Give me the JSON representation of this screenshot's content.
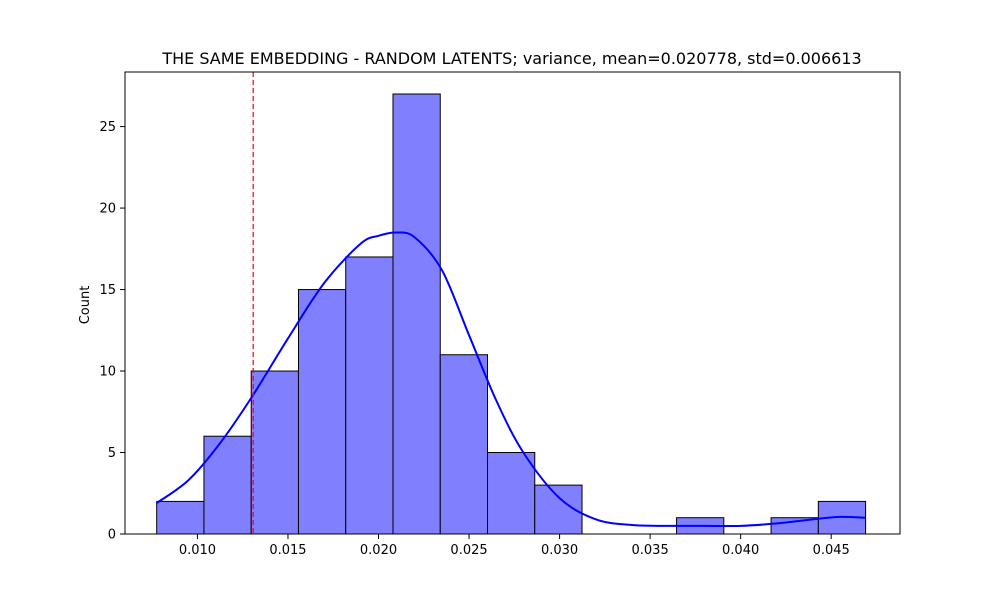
{
  "chart_data": {
    "type": "bar",
    "title": "THE SAME EMBEDDING - RANDOM LATENTS; variance, mean=0.020778, std=0.006613",
    "xlabel": "",
    "ylabel": "Count",
    "xlim": [
      0.006,
      0.0488
    ],
    "ylim": [
      0,
      28.35
    ],
    "x_ticks": [
      "0.010",
      "0.015",
      "0.020",
      "0.025",
      "0.030",
      "0.035",
      "0.040",
      "0.045"
    ],
    "y_ticks": [
      "0",
      "5",
      "10",
      "15",
      "20",
      "25"
    ],
    "bin_edges": [
      0.00775,
      0.01036,
      0.01297,
      0.01558,
      0.01819,
      0.0208,
      0.02341,
      0.02602,
      0.02863,
      0.03124,
      0.03385,
      0.03646,
      0.03907,
      0.04168,
      0.04429,
      0.0469
    ],
    "counts": [
      2,
      6,
      10,
      15,
      17,
      27,
      11,
      5,
      3,
      0,
      0,
      1,
      0,
      1,
      2
    ],
    "kde": {
      "x": [
        0.00775,
        0.0095,
        0.0112,
        0.013,
        0.015,
        0.017,
        0.019,
        0.02,
        0.021,
        0.022,
        0.0235,
        0.025,
        0.0265,
        0.028,
        0.03,
        0.032,
        0.034,
        0.036,
        0.038,
        0.04,
        0.042,
        0.044,
        0.0455,
        0.0469
      ],
      "y": [
        1.9,
        3.3,
        5.5,
        8.4,
        12.0,
        15.4,
        17.8,
        18.3,
        18.5,
        18.2,
        16.2,
        12.2,
        8.2,
        5.0,
        2.2,
        0.9,
        0.55,
        0.5,
        0.5,
        0.5,
        0.65,
        0.9,
        1.05,
        1.0
      ]
    },
    "vline": 0.01308,
    "grid": false,
    "bar_color": "#8080ff",
    "bar_edge_color": "#000000",
    "kde_color": "#0000ff",
    "vline_color": "#ff0000"
  }
}
